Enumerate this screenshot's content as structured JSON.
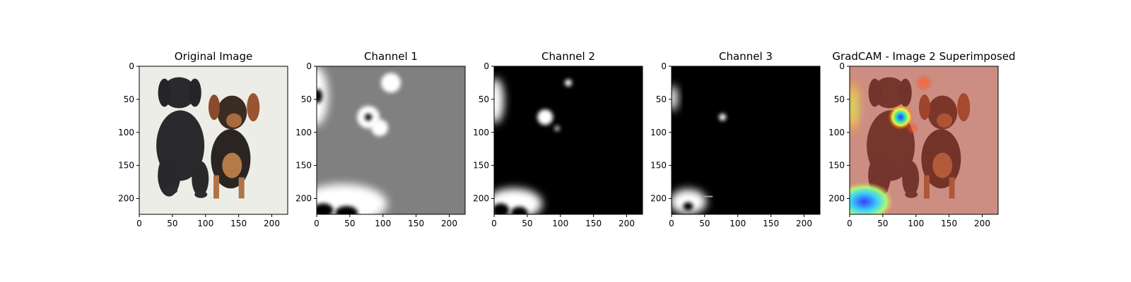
{
  "figure": {
    "background": "#ffffff",
    "tick_color": "#000000",
    "font_color": "#000000"
  },
  "chart_data": [
    {
      "type": "heatmap",
      "title": "Original Image",
      "content": "photo of two puppies (black labrador and tan-and-black puppy) on a light background",
      "xlim": [
        0,
        224
      ],
      "ylim": [
        224,
        0
      ],
      "xticks": [
        0,
        50,
        100,
        150,
        200
      ],
      "yticks": [
        0,
        50,
        100,
        150,
        200
      ],
      "grid": false
    },
    {
      "type": "heatmap",
      "title": "Channel 1",
      "colormap": "gray",
      "background_level": 0.5,
      "xlim": [
        0,
        224
      ],
      "ylim": [
        224,
        0
      ],
      "xticks": [
        0,
        50,
        100,
        150,
        200
      ],
      "yticks": [
        0,
        50,
        100,
        150,
        200
      ],
      "grid": false,
      "bright_regions": [
        {
          "x": 0,
          "y": 45,
          "note": "bright ring at left edge"
        },
        {
          "x": 112,
          "y": 25,
          "note": "bright blob"
        },
        {
          "x": 78,
          "y": 77,
          "note": "bright ring"
        },
        {
          "x": 95,
          "y": 93,
          "note": "bright blob"
        },
        {
          "x": 30,
          "y": 210,
          "note": "bright band near bottom-left"
        }
      ]
    },
    {
      "type": "heatmap",
      "title": "Channel 2",
      "colormap": "gray",
      "background_level": 0.0,
      "xlim": [
        0,
        224
      ],
      "ylim": [
        224,
        0
      ],
      "xticks": [
        0,
        50,
        100,
        150,
        200
      ],
      "yticks": [
        0,
        50,
        100,
        150,
        200
      ],
      "grid": false,
      "bright_regions": [
        {
          "x": 2,
          "y": 52,
          "note": "bright area at left edge"
        },
        {
          "x": 112,
          "y": 25,
          "note": "small spot"
        },
        {
          "x": 77,
          "y": 77,
          "note": "bright blob"
        },
        {
          "x": 95,
          "y": 94,
          "note": "faint spot"
        },
        {
          "x": 30,
          "y": 208,
          "note": "bright ring near bottom-left"
        }
      ]
    },
    {
      "type": "heatmap",
      "title": "Channel 3",
      "colormap": "gray",
      "background_level": 0.0,
      "xlim": [
        0,
        224
      ],
      "ylim": [
        224,
        0
      ],
      "xticks": [
        0,
        50,
        100,
        150,
        200
      ],
      "yticks": [
        0,
        50,
        100,
        150,
        200
      ],
      "grid": false,
      "bright_regions": [
        {
          "x": 3,
          "y": 48,
          "note": "faint area at left edge"
        },
        {
          "x": 77,
          "y": 77,
          "note": "small bright spot"
        },
        {
          "x": 28,
          "y": 205,
          "note": "bright ring near bottom-left"
        }
      ]
    },
    {
      "type": "heatmap",
      "title": "GradCAM - Image 2 Superimposed",
      "colormap": "jet",
      "overlay": "heatmap superimposed on the original puppy photo",
      "xlim": [
        0,
        224
      ],
      "ylim": [
        224,
        0
      ],
      "xticks": [
        0,
        50,
        100,
        150,
        200
      ],
      "yticks": [
        0,
        50,
        100,
        150,
        200
      ],
      "grid": false,
      "hot_regions": [
        {
          "x": 5,
          "y": 55,
          "note": "yellow/green at left edge"
        },
        {
          "x": 77,
          "y": 77,
          "note": "cyan/blue hotspot with yellow halo"
        },
        {
          "x": 112,
          "y": 25,
          "note": "orange spot"
        },
        {
          "x": 25,
          "y": 205,
          "note": "blue/cyan region near bottom-left"
        }
      ]
    }
  ]
}
